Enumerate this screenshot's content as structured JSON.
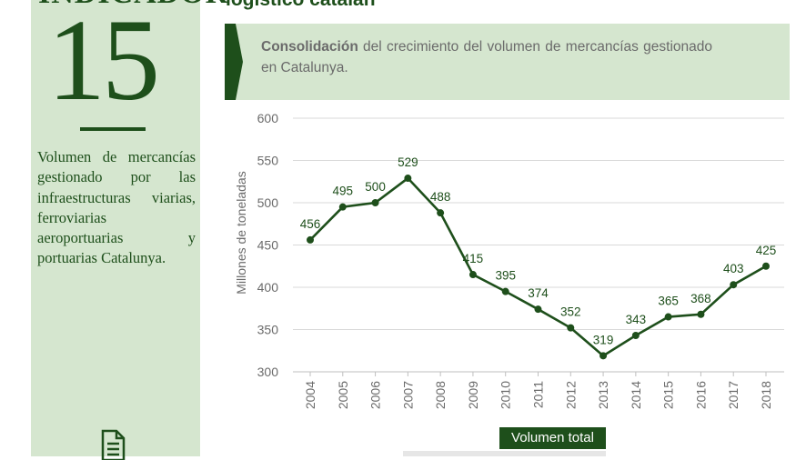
{
  "sidebar": {
    "indicator_word": "INDICADOR",
    "indicator_number": "15",
    "description": "Volumen de mercancías gestionado por las infraestructuras viarias, ferroviarias aeroportuarias y portuarias Catalunya."
  },
  "header": {
    "title": "logístico catalán"
  },
  "banner": {
    "strong": "Consolidación",
    "text": " del crecimiento del volumen de mercancías gestionado en Catalunya."
  },
  "legend": {
    "label": "Volumen total"
  },
  "colors": {
    "dark_green": "#1e4f1b",
    "light_green": "#d5e6cf",
    "gray_text": "#6b6b6b",
    "grid": "#d9d9d9"
  },
  "icons": {
    "bottom": "document-icon"
  },
  "chart_data": {
    "type": "line",
    "x": [
      "2004",
      "2005",
      "2006",
      "2007",
      "2008",
      "2009",
      "2010",
      "2011",
      "2012",
      "2013",
      "2014",
      "2015",
      "2016",
      "2017",
      "2018"
    ],
    "series": [
      {
        "name": "Volumen total",
        "values": [
          456,
          495,
          500,
          529,
          488,
          415,
          395,
          374,
          352,
          319,
          343,
          365,
          368,
          403,
          425
        ]
      }
    ],
    "ylabel": "Millones de toneladas",
    "ylim": [
      300,
      600
    ],
    "yticks": [
      300,
      350,
      400,
      450,
      500,
      550,
      600
    ],
    "grid": true,
    "legend_position": "bottom"
  }
}
